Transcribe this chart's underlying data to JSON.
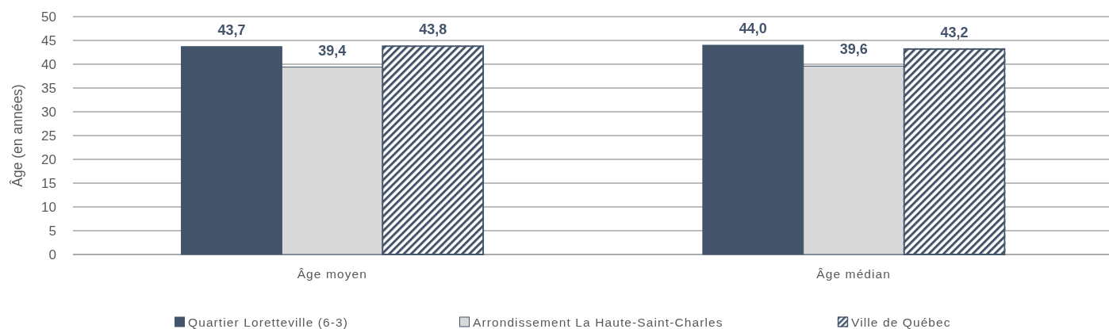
{
  "chart_data": {
    "type": "bar",
    "ylabel": "Âge (en années)",
    "categories": [
      "Âge moyen",
      "Âge médian"
    ],
    "series": [
      {
        "name": "Quartier Loretteville (6-3)",
        "color": "#44546a",
        "values": [
          43.7,
          44.0
        ],
        "value_labels": [
          "43,7",
          "44,0"
        ]
      },
      {
        "name": "Arrondissement La Haute-Saint-Charles",
        "color": "#d9d9d9",
        "values": [
          39.4,
          39.6
        ],
        "value_labels": [
          "39,4",
          "39,6"
        ]
      },
      {
        "name": "Ville de Québec",
        "color": "#44546a",
        "values": [
          43.8,
          43.2
        ],
        "value_labels": [
          "43,8",
          "43,2"
        ]
      }
    ],
    "ylim": [
      0,
      50
    ],
    "yticks": [
      0,
      5,
      10,
      15,
      20,
      25,
      30,
      35,
      40,
      45,
      50
    ],
    "grid": "y",
    "legend": "bottom"
  }
}
